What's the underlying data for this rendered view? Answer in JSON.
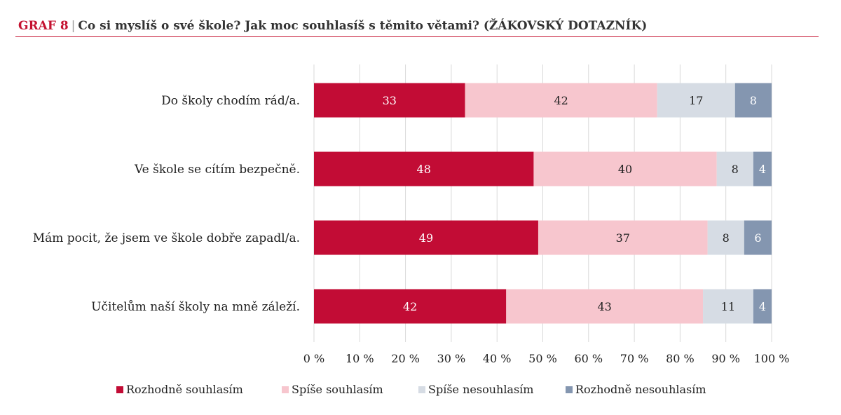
{
  "header": {
    "tag": "GRAF 8",
    "separator": "|",
    "title": "Co si myslíš o své škole? Jak moc souhlasíš s těmito větami? (ŽÁKOVSKÝ DOTAZNÍK)"
  },
  "chart_data": {
    "type": "bar",
    "orientation": "horizontal",
    "stacked": true,
    "categories": [
      "Do školy chodím rád/a.",
      "Ve škole se cítím bezpečně.",
      "Mám pocit, že jsem ve škole dobře zapadl/a.",
      "Učitelům naší školy na mně záleží."
    ],
    "series": [
      {
        "name": "Rozhodně souhlasím",
        "color": "#c20c35",
        "label_color": "#ffffff",
        "values": [
          33,
          48,
          49,
          42
        ]
      },
      {
        "name": "Spíše souhlasím",
        "color": "#f7c6ce",
        "label_color": "#222222",
        "values": [
          42,
          40,
          37,
          43
        ]
      },
      {
        "name": "Spíše nesouhlasím",
        "color": "#d6dce4",
        "label_color": "#222222",
        "values": [
          17,
          8,
          8,
          11
        ]
      },
      {
        "name": "Rozhodně nesouhlasím",
        "color": "#8496b0",
        "label_color": "#ffffff",
        "values": [
          8,
          4,
          6,
          4
        ]
      }
    ],
    "xlim": [
      0,
      100
    ],
    "xticks": [
      "0 %",
      "10 %",
      "20 %",
      "30 %",
      "40 %",
      "50 %",
      "60 %",
      "70 %",
      "80 %",
      "90 %",
      "100 %"
    ],
    "grid": true,
    "legend_position": "bottom"
  }
}
